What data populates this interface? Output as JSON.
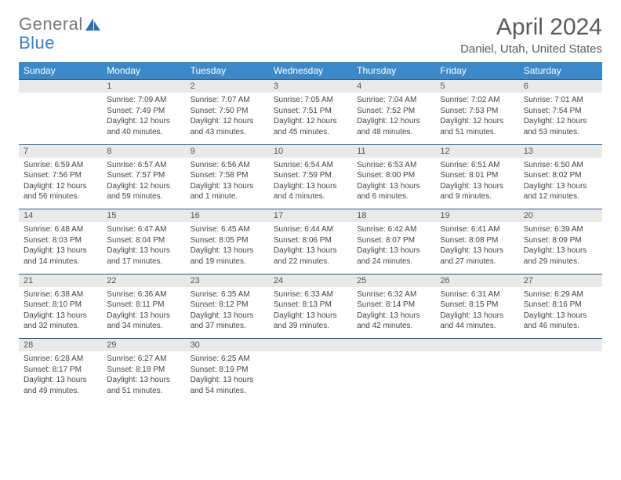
{
  "logo": {
    "word1": "General",
    "word2": "Blue"
  },
  "title": "April 2024",
  "location": "Daniel, Utah, United States",
  "colors": {
    "header_bg": "#3b89c9",
    "header_text": "#ffffff",
    "daynum_bg": "#e9e9e9",
    "border": "#2d5c8a",
    "text": "#444444",
    "title_text": "#5a5a5a"
  },
  "weekday_headers": [
    "Sunday",
    "Monday",
    "Tuesday",
    "Wednesday",
    "Thursday",
    "Friday",
    "Saturday"
  ],
  "weeks": [
    {
      "nums": [
        "",
        "1",
        "2",
        "3",
        "4",
        "5",
        "6"
      ],
      "cells": [
        null,
        {
          "sr": "Sunrise: 7:09 AM",
          "ss": "Sunset: 7:49 PM",
          "d1": "Daylight: 12 hours",
          "d2": "and 40 minutes."
        },
        {
          "sr": "Sunrise: 7:07 AM",
          "ss": "Sunset: 7:50 PM",
          "d1": "Daylight: 12 hours",
          "d2": "and 43 minutes."
        },
        {
          "sr": "Sunrise: 7:05 AM",
          "ss": "Sunset: 7:51 PM",
          "d1": "Daylight: 12 hours",
          "d2": "and 45 minutes."
        },
        {
          "sr": "Sunrise: 7:04 AM",
          "ss": "Sunset: 7:52 PM",
          "d1": "Daylight: 12 hours",
          "d2": "and 48 minutes."
        },
        {
          "sr": "Sunrise: 7:02 AM",
          "ss": "Sunset: 7:53 PM",
          "d1": "Daylight: 12 hours",
          "d2": "and 51 minutes."
        },
        {
          "sr": "Sunrise: 7:01 AM",
          "ss": "Sunset: 7:54 PM",
          "d1": "Daylight: 12 hours",
          "d2": "and 53 minutes."
        }
      ]
    },
    {
      "nums": [
        "7",
        "8",
        "9",
        "10",
        "11",
        "12",
        "13"
      ],
      "cells": [
        {
          "sr": "Sunrise: 6:59 AM",
          "ss": "Sunset: 7:56 PM",
          "d1": "Daylight: 12 hours",
          "d2": "and 56 minutes."
        },
        {
          "sr": "Sunrise: 6:57 AM",
          "ss": "Sunset: 7:57 PM",
          "d1": "Daylight: 12 hours",
          "d2": "and 59 minutes."
        },
        {
          "sr": "Sunrise: 6:56 AM",
          "ss": "Sunset: 7:58 PM",
          "d1": "Daylight: 13 hours",
          "d2": "and 1 minute."
        },
        {
          "sr": "Sunrise: 6:54 AM",
          "ss": "Sunset: 7:59 PM",
          "d1": "Daylight: 13 hours",
          "d2": "and 4 minutes."
        },
        {
          "sr": "Sunrise: 6:53 AM",
          "ss": "Sunset: 8:00 PM",
          "d1": "Daylight: 13 hours",
          "d2": "and 6 minutes."
        },
        {
          "sr": "Sunrise: 6:51 AM",
          "ss": "Sunset: 8:01 PM",
          "d1": "Daylight: 13 hours",
          "d2": "and 9 minutes."
        },
        {
          "sr": "Sunrise: 6:50 AM",
          "ss": "Sunset: 8:02 PM",
          "d1": "Daylight: 13 hours",
          "d2": "and 12 minutes."
        }
      ]
    },
    {
      "nums": [
        "14",
        "15",
        "16",
        "17",
        "18",
        "19",
        "20"
      ],
      "cells": [
        {
          "sr": "Sunrise: 6:48 AM",
          "ss": "Sunset: 8:03 PM",
          "d1": "Daylight: 13 hours",
          "d2": "and 14 minutes."
        },
        {
          "sr": "Sunrise: 6:47 AM",
          "ss": "Sunset: 8:04 PM",
          "d1": "Daylight: 13 hours",
          "d2": "and 17 minutes."
        },
        {
          "sr": "Sunrise: 6:45 AM",
          "ss": "Sunset: 8:05 PM",
          "d1": "Daylight: 13 hours",
          "d2": "and 19 minutes."
        },
        {
          "sr": "Sunrise: 6:44 AM",
          "ss": "Sunset: 8:06 PM",
          "d1": "Daylight: 13 hours",
          "d2": "and 22 minutes."
        },
        {
          "sr": "Sunrise: 6:42 AM",
          "ss": "Sunset: 8:07 PM",
          "d1": "Daylight: 13 hours",
          "d2": "and 24 minutes."
        },
        {
          "sr": "Sunrise: 6:41 AM",
          "ss": "Sunset: 8:08 PM",
          "d1": "Daylight: 13 hours",
          "d2": "and 27 minutes."
        },
        {
          "sr": "Sunrise: 6:39 AM",
          "ss": "Sunset: 8:09 PM",
          "d1": "Daylight: 13 hours",
          "d2": "and 29 minutes."
        }
      ]
    },
    {
      "nums": [
        "21",
        "22",
        "23",
        "24",
        "25",
        "26",
        "27"
      ],
      "cells": [
        {
          "sr": "Sunrise: 6:38 AM",
          "ss": "Sunset: 8:10 PM",
          "d1": "Daylight: 13 hours",
          "d2": "and 32 minutes."
        },
        {
          "sr": "Sunrise: 6:36 AM",
          "ss": "Sunset: 8:11 PM",
          "d1": "Daylight: 13 hours",
          "d2": "and 34 minutes."
        },
        {
          "sr": "Sunrise: 6:35 AM",
          "ss": "Sunset: 8:12 PM",
          "d1": "Daylight: 13 hours",
          "d2": "and 37 minutes."
        },
        {
          "sr": "Sunrise: 6:33 AM",
          "ss": "Sunset: 8:13 PM",
          "d1": "Daylight: 13 hours",
          "d2": "and 39 minutes."
        },
        {
          "sr": "Sunrise: 6:32 AM",
          "ss": "Sunset: 8:14 PM",
          "d1": "Daylight: 13 hours",
          "d2": "and 42 minutes."
        },
        {
          "sr": "Sunrise: 6:31 AM",
          "ss": "Sunset: 8:15 PM",
          "d1": "Daylight: 13 hours",
          "d2": "and 44 minutes."
        },
        {
          "sr": "Sunrise: 6:29 AM",
          "ss": "Sunset: 8:16 PM",
          "d1": "Daylight: 13 hours",
          "d2": "and 46 minutes."
        }
      ]
    },
    {
      "nums": [
        "28",
        "29",
        "30",
        "",
        "",
        "",
        ""
      ],
      "cells": [
        {
          "sr": "Sunrise: 6:28 AM",
          "ss": "Sunset: 8:17 PM",
          "d1": "Daylight: 13 hours",
          "d2": "and 49 minutes."
        },
        {
          "sr": "Sunrise: 6:27 AM",
          "ss": "Sunset: 8:18 PM",
          "d1": "Daylight: 13 hours",
          "d2": "and 51 minutes."
        },
        {
          "sr": "Sunrise: 6:25 AM",
          "ss": "Sunset: 8:19 PM",
          "d1": "Daylight: 13 hours",
          "d2": "and 54 minutes."
        },
        null,
        null,
        null,
        null
      ]
    }
  ]
}
